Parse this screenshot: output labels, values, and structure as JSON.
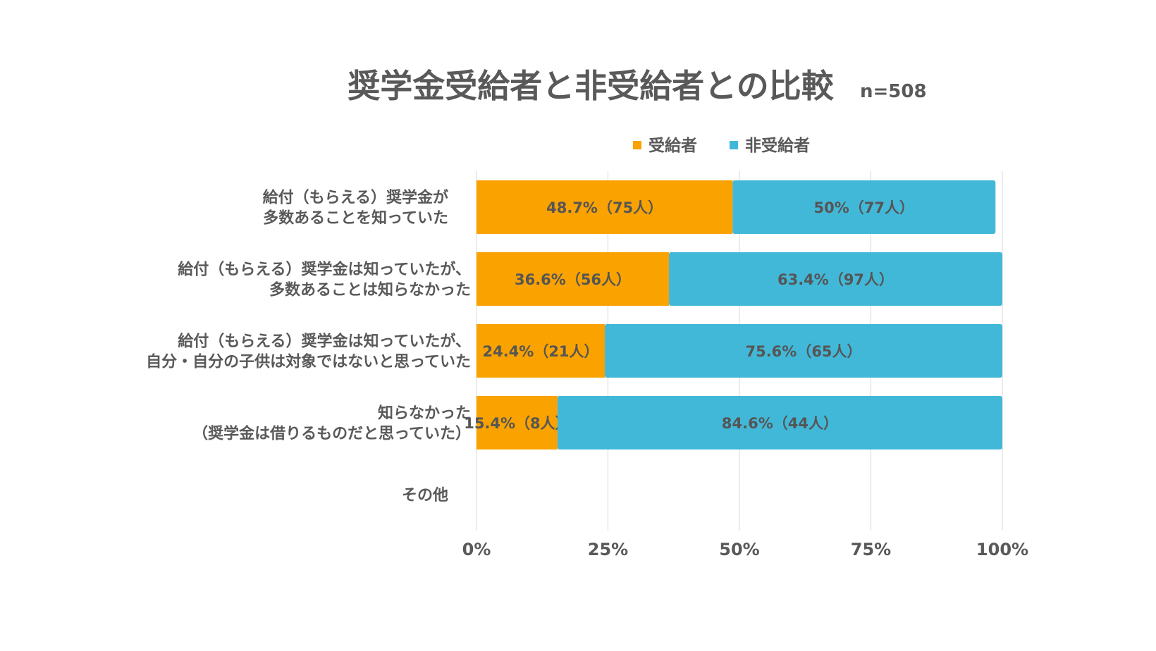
{
  "chart_data": {
    "type": "bar",
    "orientation": "horizontal",
    "stacked": true,
    "title": "奨学金受給者と非受給者との比較",
    "subtitle": "n=508",
    "categories": [
      [
        "給付（もらえる）奨学金が",
        "多数あることを知っていた"
      ],
      [
        "給付（もらえる）奨学金は知っていたが、",
        "多数あることは知らなかった"
      ],
      [
        "給付（もらえる）奨学金は知っていたが、",
        "自分・自分の子供は対象ではないと思っていた"
      ],
      [
        "知らなかった",
        "（奨学金は借りるものだと思っていた）"
      ],
      [
        "その他"
      ]
    ],
    "series": [
      {
        "name": "受給者",
        "color": "#F9A200",
        "values": [
          48.7,
          36.6,
          24.4,
          15.4,
          null
        ],
        "labels": [
          "48.7%（75人）",
          "36.6%（56人）",
          "24.4%（21人）",
          "15.4%（8人）",
          ""
        ]
      },
      {
        "name": "非受給者",
        "color": "#42B8D8",
        "values": [
          50,
          63.4,
          75.6,
          84.6,
          null
        ],
        "labels": [
          "50%（77人）",
          "63.4%（97人）",
          "75.6%（65人）",
          "84.6%（44人）",
          ""
        ]
      }
    ],
    "xlim": [
      0,
      100
    ],
    "xticks": [
      "0%",
      "25%",
      "50%",
      "75%",
      "100%"
    ],
    "grid": true,
    "legend": "top"
  }
}
